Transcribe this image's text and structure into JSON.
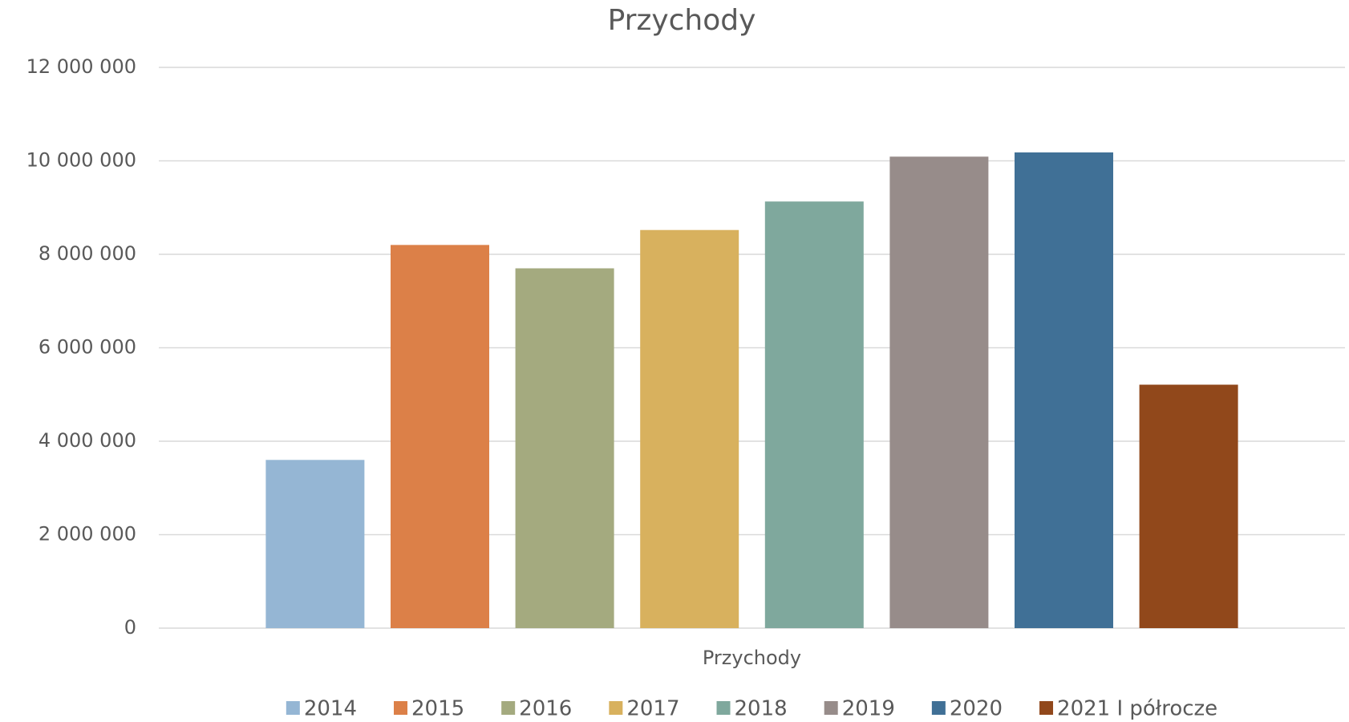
{
  "chart_data": {
    "type": "bar",
    "title": "Przychody",
    "categories": [
      "Przychody"
    ],
    "series": [
      {
        "name": "2014",
        "color": "#95b6d4",
        "values": [
          3600000
        ]
      },
      {
        "name": "2015",
        "color": "#dc8048",
        "values": [
          8200000
        ]
      },
      {
        "name": "2016",
        "color": "#a4aa7f",
        "values": [
          7700000
        ]
      },
      {
        "name": "2017",
        "color": "#d8b15e",
        "values": [
          8520000
        ]
      },
      {
        "name": "2018",
        "color": "#7fa89d",
        "values": [
          9130000
        ]
      },
      {
        "name": "2019",
        "color": "#978c8a",
        "values": [
          10090000
        ]
      },
      {
        "name": "2020",
        "color": "#407096",
        "values": [
          10180000
        ]
      },
      {
        "name": "2021 I półrocze",
        "color": "#91481b",
        "values": [
          5210000
        ]
      }
    ],
    "ylim": [
      0,
      12000000
    ],
    "yticks": [
      0,
      {
        "value": 2000000,
        "label": "2 000 000"
      },
      {
        "value": 4000000,
        "label": "4 000 000"
      },
      {
        "value": 6000000,
        "label": "6 000 000"
      },
      {
        "value": 8000000,
        "label": "8 000 000"
      },
      {
        "value": 10000000,
        "label": "10 000 000"
      },
      {
        "value": 12000000,
        "label": "12 000 000"
      }
    ],
    "grid": true,
    "legend": "bottom"
  }
}
